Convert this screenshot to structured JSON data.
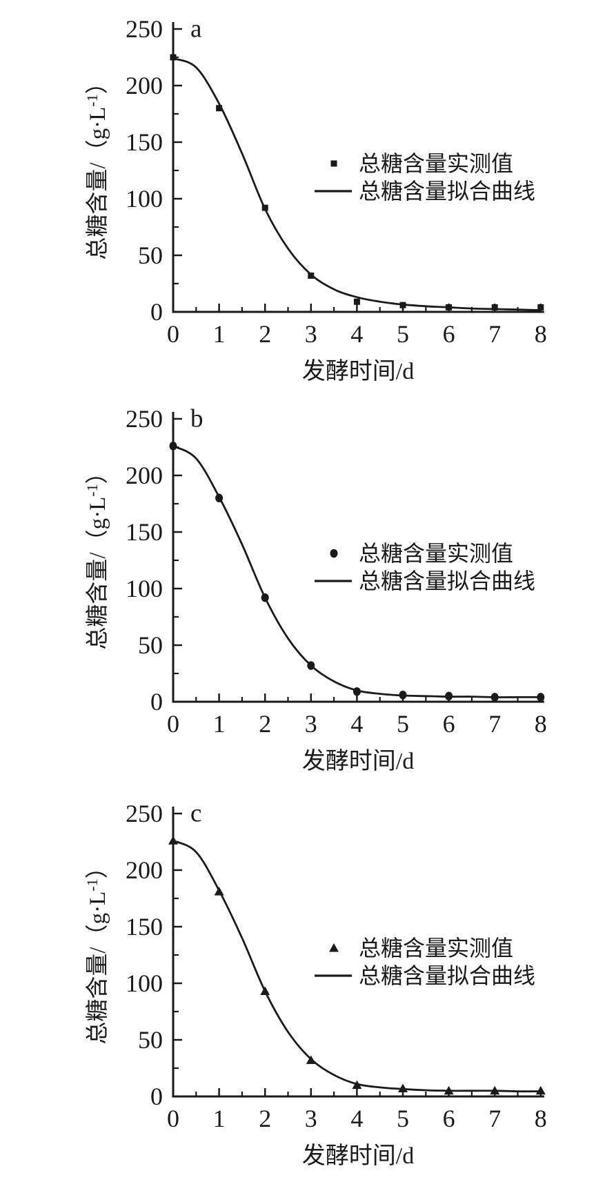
{
  "figure": {
    "background": "#ffffff",
    "ink_color": "#1a1a1a",
    "xlabel": "发酵时间/d",
    "ylabel": "总糖含量/(g·L⁻¹)",
    "ylabel_parts": {
      "pre": "总糖含量/（g·L",
      "sup": "-1",
      "post": "）"
    },
    "legend": {
      "measured": "总糖含量实测值",
      "fitted": "总糖含量拟合曲线"
    }
  },
  "chart_data": [
    {
      "type": "scatter",
      "panel_label": "a",
      "marker": "square",
      "title": "",
      "xlabel": "发酵时间/d",
      "ylabel": "总糖含量/(g·L⁻¹)",
      "xlim": [
        0,
        8
      ],
      "ylim": [
        0,
        250
      ],
      "xticks": [
        0,
        1,
        2,
        3,
        4,
        5,
        6,
        7,
        8
      ],
      "yticks": [
        0,
        50,
        100,
        150,
        200,
        250
      ],
      "legend_entries": [
        "总糖含量实测值",
        "总糖含量拟合曲线"
      ],
      "x": [
        0,
        1,
        2,
        3,
        4,
        5,
        6,
        7,
        8
      ],
      "measured": [
        225,
        180,
        92,
        32,
        9,
        6,
        4,
        4,
        4
      ],
      "fitted_x": [
        0,
        0.5,
        1,
        1.5,
        2,
        2.5,
        3,
        3.5,
        4,
        4.5,
        5,
        5.5,
        6,
        6.5,
        7,
        7.5,
        8
      ],
      "fitted_y": [
        224,
        216,
        184,
        140,
        91,
        56,
        33,
        20,
        13,
        9,
        6.5,
        5,
        4,
        3,
        2.5,
        2,
        1.5
      ]
    },
    {
      "type": "scatter",
      "panel_label": "b",
      "marker": "circle",
      "title": "",
      "xlabel": "发酵时间/d",
      "ylabel": "总糖含量/(g·L⁻¹)",
      "xlim": [
        0,
        8
      ],
      "ylim": [
        0,
        250
      ],
      "xticks": [
        0,
        1,
        2,
        3,
        4,
        5,
        6,
        7,
        8
      ],
      "yticks": [
        0,
        50,
        100,
        150,
        200,
        250
      ],
      "legend_entries": [
        "总糖含量实测值",
        "总糖含量拟合曲线"
      ],
      "x": [
        0,
        1,
        2,
        3,
        4,
        5,
        6,
        7,
        8
      ],
      "measured": [
        226,
        180,
        92,
        32,
        9,
        6,
        5,
        4,
        4
      ],
      "fitted_x": [
        0,
        0.5,
        1,
        1.5,
        2,
        2.5,
        3,
        3.5,
        4,
        4.5,
        5,
        5.5,
        6,
        6.5,
        7,
        7.5,
        8
      ],
      "fitted_y": [
        226,
        215,
        181,
        139,
        92,
        56,
        32,
        18,
        10,
        7,
        5.5,
        5,
        4.5,
        4.5,
        4,
        4,
        4
      ]
    },
    {
      "type": "scatter",
      "panel_label": "c",
      "marker": "triangle",
      "title": "",
      "xlabel": "发酵时间/d",
      "ylabel": "总糖含量/(g·L⁻¹)",
      "xlim": [
        0,
        8
      ],
      "ylim": [
        0,
        250
      ],
      "xticks": [
        0,
        1,
        2,
        3,
        4,
        5,
        6,
        7,
        8
      ],
      "yticks": [
        0,
        50,
        100,
        150,
        200,
        250
      ],
      "legend_entries": [
        "总糖含量实测值",
        "总糖含量拟合曲线"
      ],
      "x": [
        0,
        1,
        2,
        3,
        4,
        5,
        6,
        7,
        8
      ],
      "measured": [
        226,
        181,
        93,
        32,
        10,
        7,
        5,
        5,
        5
      ],
      "fitted_x": [
        0,
        0.5,
        1,
        1.5,
        2,
        2.5,
        3,
        3.5,
        4,
        4.5,
        5,
        5.5,
        6,
        6.5,
        7,
        7.5,
        8
      ],
      "fitted_y": [
        226,
        216,
        182,
        140,
        93,
        57,
        33,
        19,
        11,
        8,
        6.5,
        5.5,
        5,
        5,
        5,
        4.5,
        4.5
      ]
    }
  ]
}
